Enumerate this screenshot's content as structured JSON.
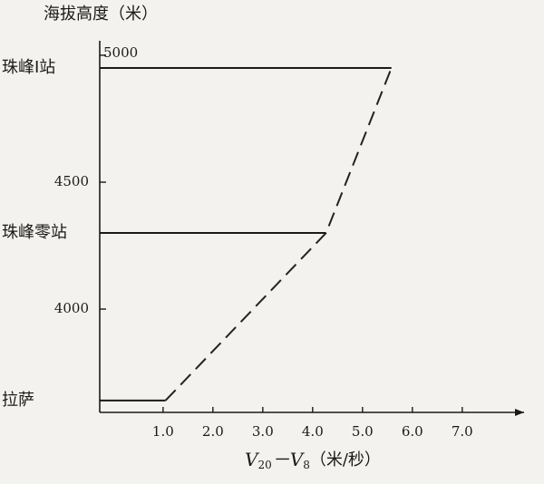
{
  "chart_data": {
    "type": "line",
    "ylabel": "海拔高度（米）",
    "xlabel": [
      "V",
      "20",
      "－V",
      "8",
      "（米/秒）"
    ],
    "stations": {
      "names": [
        "珠峰I站",
        "珠峰零站",
        "拉萨"
      ],
      "heights": [
        4950,
        4300,
        3640
      ]
    },
    "series": [
      {
        "x": [
          1.05,
          4.27,
          5.58
        ],
        "values": [
          3640,
          4300,
          4950
        ],
        "color": "#222222",
        "dashed": true
      }
    ],
    "xlim": [
      -0.27,
      8.24
    ],
    "ylim": [
      3593,
      5057
    ],
    "xticks": [
      {
        "value": 1,
        "label": "1.0"
      },
      {
        "value": 2,
        "label": "2.0"
      },
      {
        "value": 3,
        "label": "3.0"
      },
      {
        "value": 4,
        "label": "4.0"
      },
      {
        "value": 5,
        "label": "5.0"
      },
      {
        "value": 6,
        "label": "6.0"
      },
      {
        "value": 7,
        "label": "7.0"
      }
    ],
    "yticks": [
      4000,
      4500,
      5000
    ]
  }
}
